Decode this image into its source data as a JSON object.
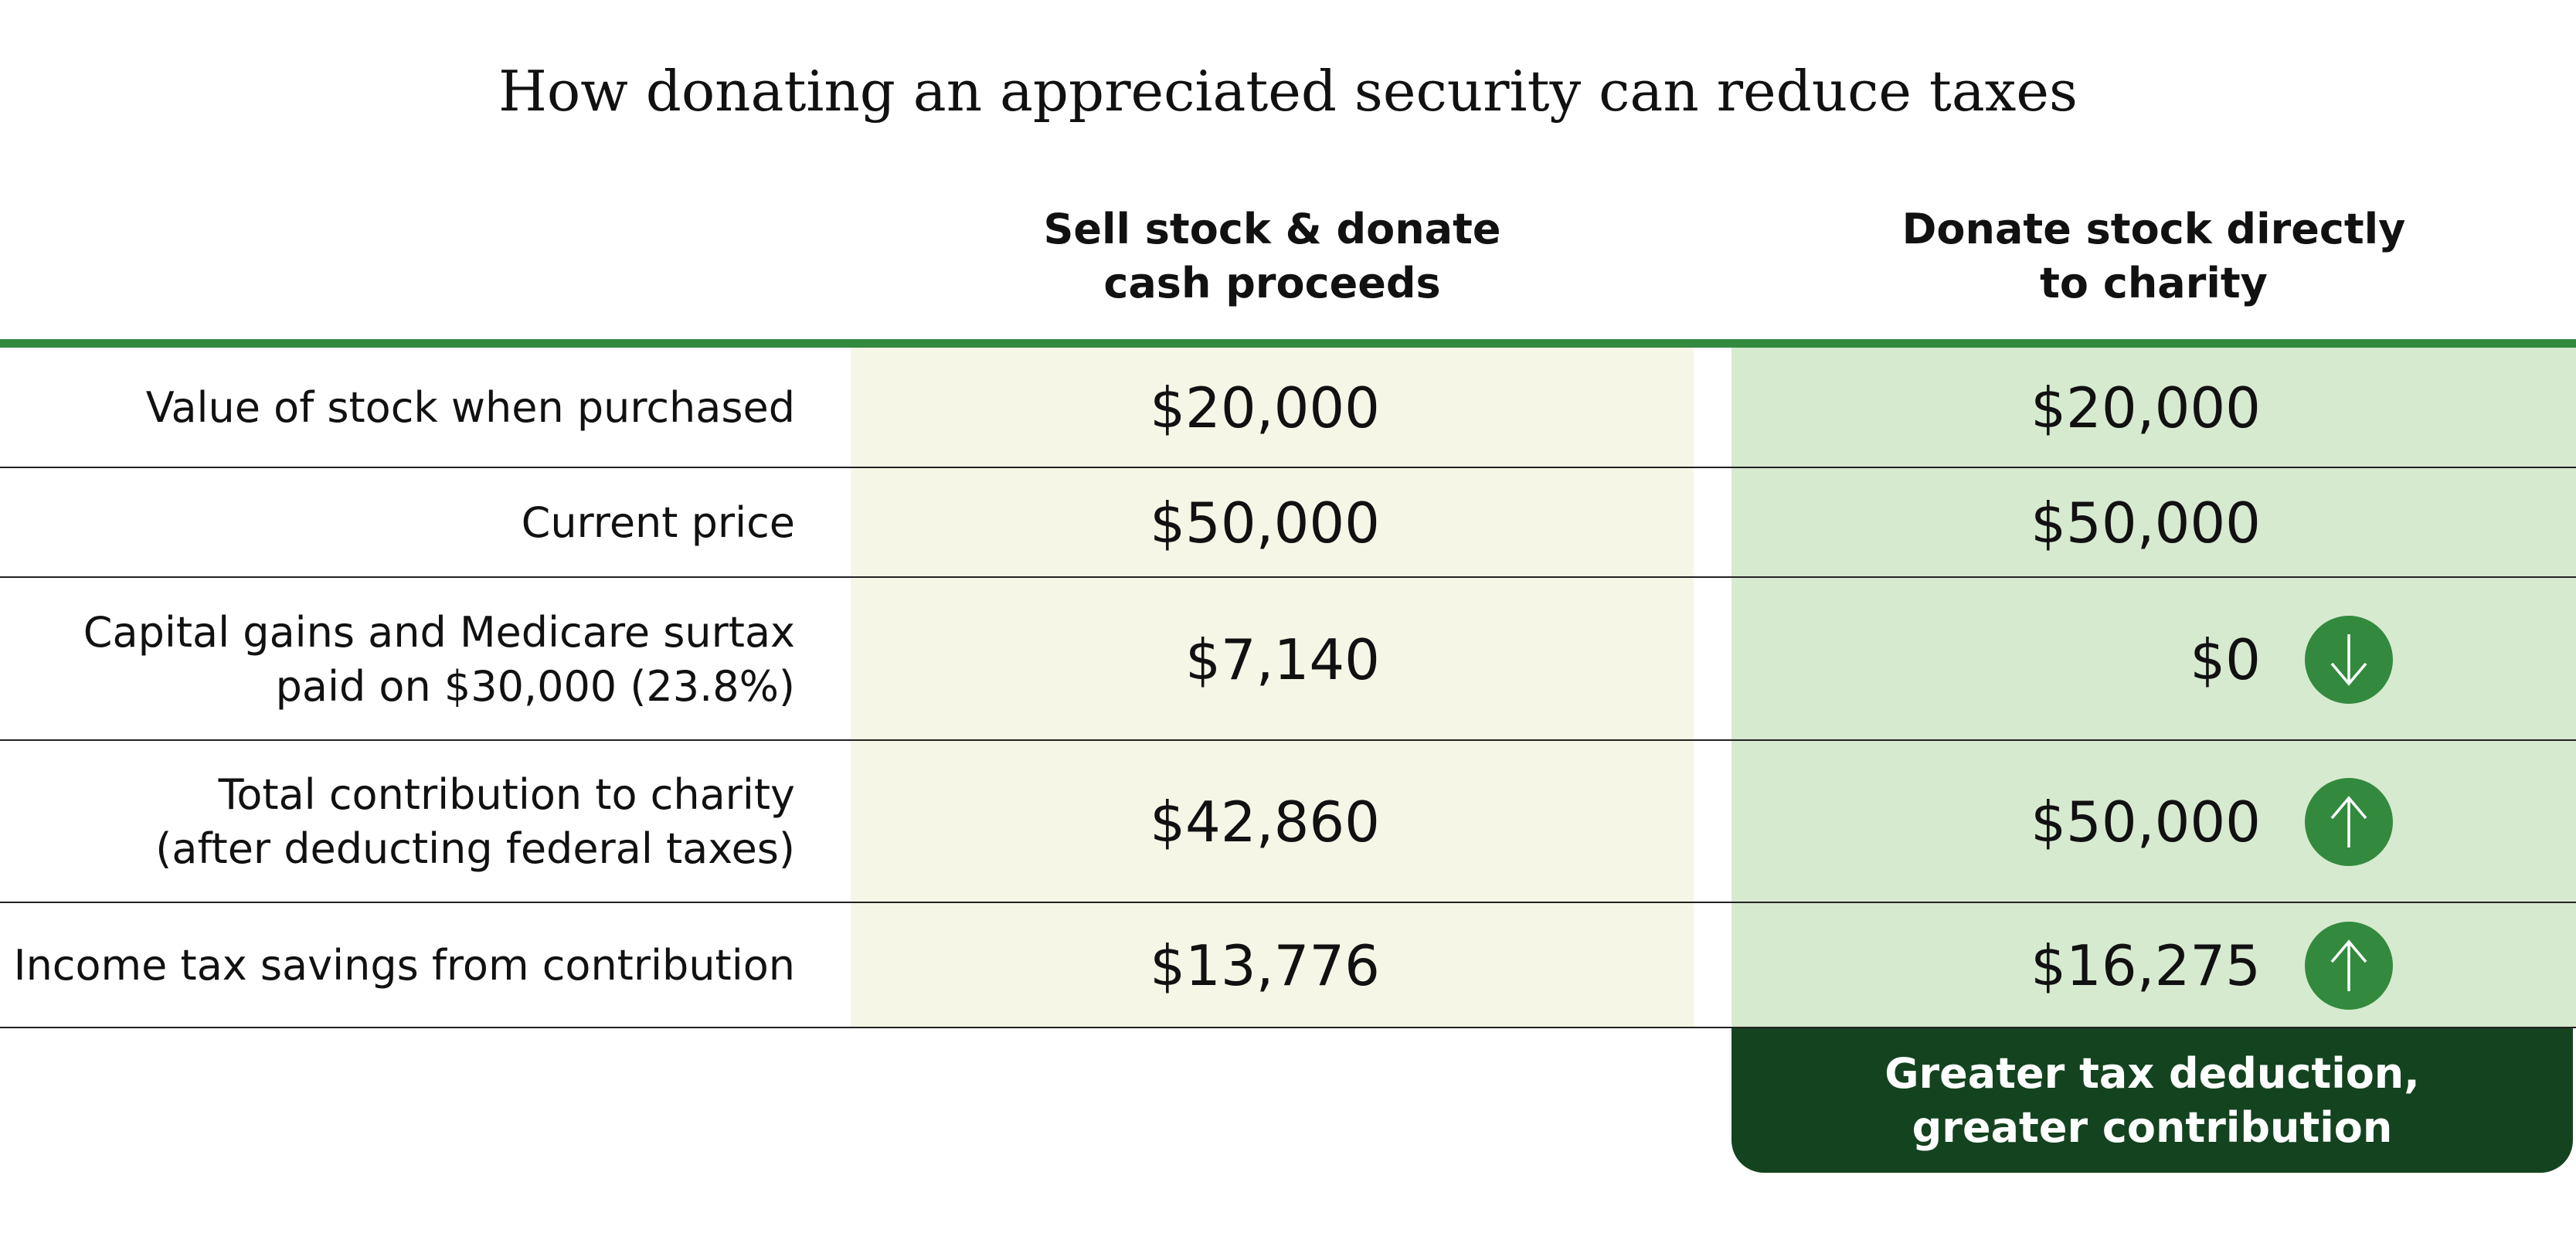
{
  "title": "How donating an appreciated security can reduce taxes",
  "columns": [
    {
      "line1": "Sell stock & donate",
      "line2": "cash proceeds"
    },
    {
      "line1": "Donate stock directly",
      "line2": "to charity"
    }
  ],
  "rows": [
    {
      "label1": "Value of stock when purchased",
      "label2": "",
      "sell": "$20,000",
      "donate": "$20,000",
      "indicator": ""
    },
    {
      "label1": "Current price",
      "label2": "",
      "sell": "$50,000",
      "donate": "$50,000",
      "indicator": ""
    },
    {
      "label1": "Capital gains and Medicare surtax",
      "label2": "paid on $30,000 (23.8%)",
      "sell": "$7,140",
      "donate": "$0",
      "indicator": "arrow-down"
    },
    {
      "label1": "Total contribution to charity",
      "label2": "(after deducting federal taxes)",
      "sell": "$42,860",
      "donate": "$50,000",
      "indicator": "arrow-up"
    },
    {
      "label1": "Income tax savings from contribution",
      "label2": "",
      "sell": "$13,776",
      "donate": "$16,275",
      "indicator": "arrow-up"
    }
  ],
  "footer": {
    "line1": "Greater tax deduction,",
    "line2": "greater contribution"
  },
  "colors": {
    "accent": "#338a3e",
    "dark": "#14431f",
    "sell_bg": "#f6f6e6",
    "donate_bg": "#d6eacf"
  }
}
